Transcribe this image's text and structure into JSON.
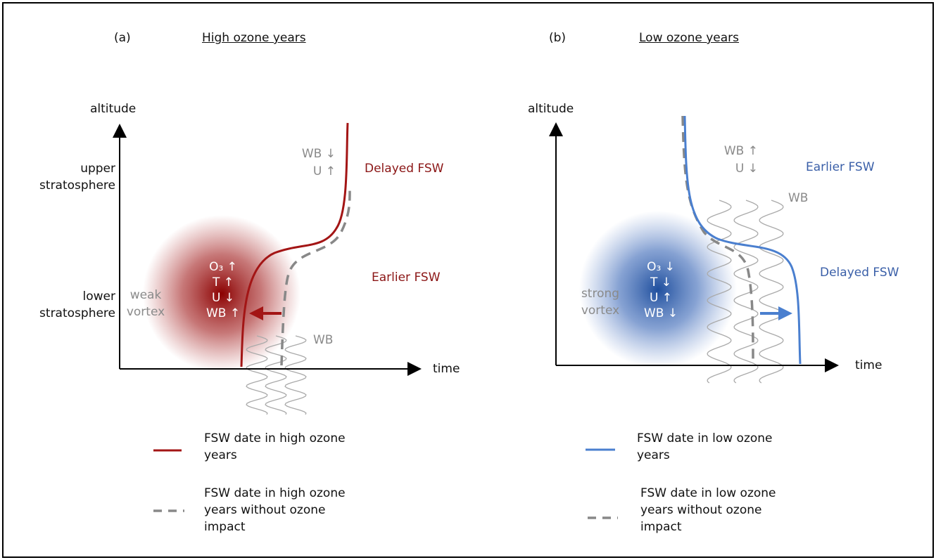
{
  "panels": [
    {
      "label": "(a)",
      "title": "High ozone years",
      "y_axis_label": "altitude",
      "y_levels": [
        "upper stratosphere",
        "lower stratosphere"
      ],
      "x_axis_label": "time",
      "upper_annotations": [
        "WB ↓",
        "U ↑"
      ],
      "delayed": "Delayed FSW",
      "earlier": "Earlier FSW",
      "vortex": "weak vortex",
      "vortex_changes": [
        "O₃ ↑",
        "T ↑",
        "U ↓",
        "WB ↑"
      ],
      "wave_label": "WB",
      "legend": [
        "FSW date in high ozone years",
        "FSW date in high ozone years without ozone impact"
      ]
    },
    {
      "label": "(b)",
      "title": "Low ozone years",
      "y_axis_label": "altitude",
      "x_axis_label": "time",
      "upper_annotations": [
        "WB ↑",
        "U ↓"
      ],
      "earlier": "Earlier FSW",
      "delayed": "Delayed FSW",
      "vortex": "strong vortex",
      "vortex_changes": [
        "O₃ ↓",
        "T ↓",
        "U ↑",
        "WB ↓"
      ],
      "wave_label": "WB",
      "legend": [
        "FSW date in low ozone years",
        "FSW date in low ozone years without ozone impact"
      ]
    }
  ]
}
